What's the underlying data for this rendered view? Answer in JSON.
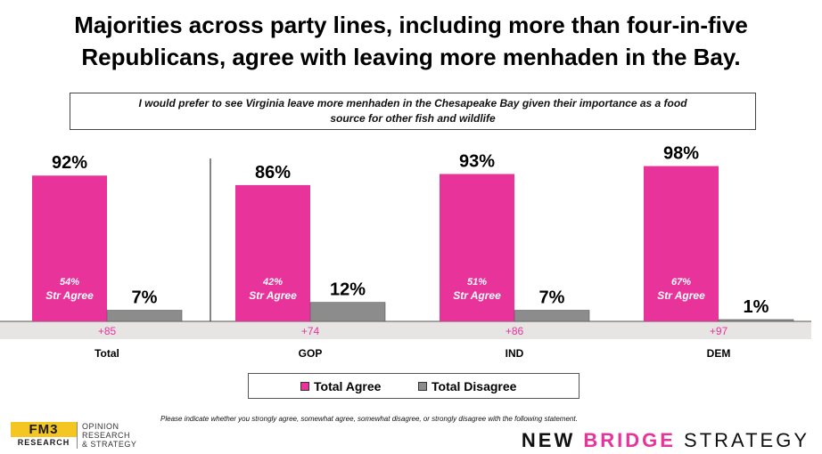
{
  "title_line1": "Majorities across party lines, including more than four-in-five",
  "title_line2": "Republicans, agree with leaving more menhaden in the Bay.",
  "question_line1": "I would prefer to see Virginia leave more menhaden in the Chesapeake Bay given their importance as a food",
  "question_line2": "source for other fish and wildlife",
  "footnote": "Please indicate whether you strongly agree, somewhat agree, somewhat disagree, or strongly disagree with the following statement.",
  "legend": {
    "agree": "Total Agree",
    "disagree": "Total Disagree"
  },
  "colors": {
    "agree": "#e8339b",
    "disagree": "#8c8c8c",
    "net_band": "#e7e4e4",
    "net_text": "#e8339b"
  },
  "logos": {
    "fm3_mark": "FM3",
    "fm3_sub": "RESEARCH",
    "fm3_line1": "OPINION",
    "fm3_line2": "RESEARCH",
    "fm3_line3": "& STRATEGY",
    "nbs_new": "NEW",
    "nbs_bridge": "BRIDGE",
    "nbs_strategy": "STRATEGY"
  },
  "chart_data": {
    "type": "bar",
    "categories": [
      "Total",
      "GOP",
      "IND",
      "DEM"
    ],
    "series": [
      {
        "name": "Total Agree",
        "values": [
          92,
          86,
          93,
          98
        ],
        "labels": [
          "92%",
          "86%",
          "93%",
          "98%"
        ]
      },
      {
        "name": "Total Disagree",
        "values": [
          7,
          12,
          7,
          1
        ],
        "labels": [
          "7%",
          "12%",
          "7%",
          "1%"
        ]
      }
    ],
    "strong_agree": {
      "values": [
        54,
        42,
        51,
        67
      ],
      "labels": [
        "54%",
        "42%",
        "51%",
        "67%"
      ],
      "caption": "Str Agree"
    },
    "net": {
      "values": [
        85,
        74,
        86,
        97
      ],
      "labels": [
        "+85",
        "+74",
        "+86",
        "+97"
      ]
    },
    "ylim": [
      0,
      100
    ],
    "grid": false,
    "legend_position": "bottom"
  }
}
